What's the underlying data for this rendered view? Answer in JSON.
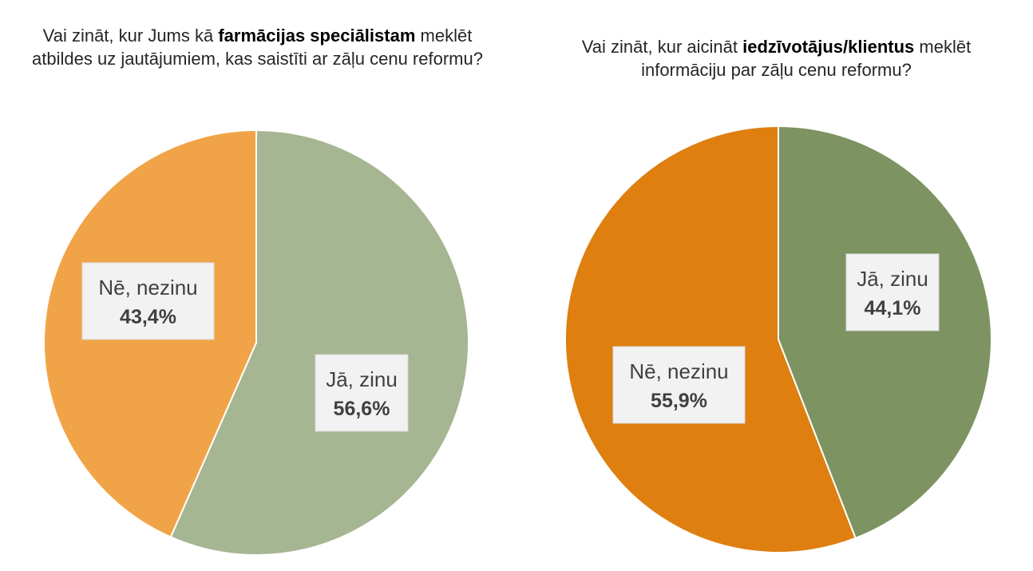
{
  "chart_data": [
    {
      "type": "pie",
      "title": {
        "pre": "Vai zināt, kur Jums kā ",
        "bold": "farmācijas speciālistam",
        "post": " meklēt atbildes uz jautājumiem, kas saistīti ar zāļu cenu reformu?"
      },
      "slices": [
        {
          "label": "Jā, zinu",
          "value": 56.6,
          "value_label": "56,6%",
          "color": "#A6B592"
        },
        {
          "label": "Nē, nezinu",
          "value": 43.4,
          "value_label": "43,4%",
          "color": "#F1A447"
        }
      ]
    },
    {
      "type": "pie",
      "title": {
        "pre": "Vai zināt, kur aicināt ",
        "bold": "iedzīvotājus/klientus",
        "post": " meklēt informāciju par zāļu cenu reformu?"
      },
      "slices": [
        {
          "label": "Jā, zinu",
          "value": 44.1,
          "value_label": "44,1%",
          "color": "#7D9362"
        },
        {
          "label": "Nē, nezinu",
          "value": 55.9,
          "value_label": "55,9%",
          "color": "#DE7F10"
        }
      ]
    }
  ]
}
